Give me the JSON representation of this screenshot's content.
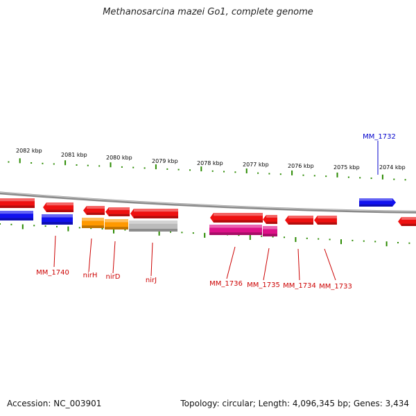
{
  "title": "Methanosarcina mazei Go1, complete genome",
  "accession_text": "Accession: NC_003901",
  "info_text": "Topology: circular; Length: 4,096,345 bp; Genes: 3,434",
  "colors": {
    "backbone": "#8a8a8a",
    "tick": "#2a8a00",
    "label_red": "#cc0000",
    "label_blue": "#0000cc",
    "red_gene": "#ee1111",
    "blue_gene": "#1111ee",
    "orange_gene": "#ff9900",
    "gray_gene": "#bbbbbb",
    "magenta_gene": "#dd1188"
  },
  "ruler": {
    "labels": [
      "2082 kbp",
      "2081 kbp",
      "2080 kbp",
      "2079 kbp",
      "2078 kbp",
      "2077 kbp",
      "2076 kbp",
      "2075 kbp",
      "2074 kbp"
    ]
  },
  "gene_labels": [
    "MM_1740",
    "nirH",
    "nirD",
    "nirJ",
    "MM_1736",
    "MM_1735",
    "MM_1734",
    "MM_1733",
    "MM_1732"
  ]
}
